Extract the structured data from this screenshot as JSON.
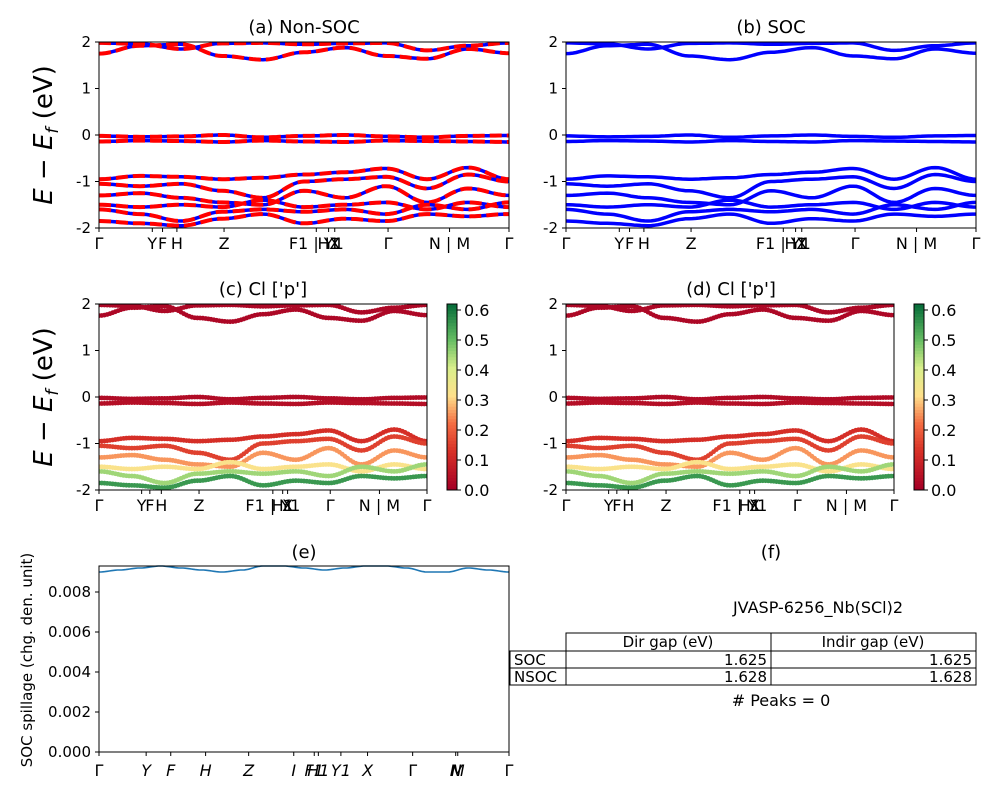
{
  "colors": {
    "nonsoc_a": "#ff0000",
    "nonsoc_b": "#0000ff",
    "soc": "#0000ff",
    "spillage": "#1f77b4"
  },
  "colorbar": {
    "ticks": [
      "0.0",
      "0.1",
      "0.2",
      "0.3",
      "0.4",
      "0.5",
      "0.6"
    ],
    "max": 0.62
  },
  "band_ylabel": "E − E_f (eV)",
  "band_yticks": [
    "-2",
    "-1",
    "0",
    "1",
    "2"
  ],
  "band_xticks": [
    "Γ",
    "Y",
    "F",
    "H",
    "Z",
    "F1 | Y1",
    "H1",
    "X",
    "Γ",
    "N | M",
    "Γ"
  ],
  "band_xpos": [
    0,
    0.13,
    0.155,
    0.19,
    0.305,
    0.53,
    0.56,
    0.575,
    0.705,
    0.855,
    1.0
  ],
  "chart_data": [
    {
      "id": "a",
      "type": "line",
      "title": "(a) Non-SOC",
      "ylabel": "E − E_f (eV)",
      "ylim": [
        -2,
        2
      ],
      "bands": [
        {
          "energies": [
            1.75,
            1.92,
            1.95,
            1.7,
            1.62,
            1.78,
            1.88,
            1.7,
            1.64,
            1.85,
            1.76
          ]
        },
        {
          "energies": [
            1.98,
            1.96,
            1.85,
            1.97,
            1.98,
            1.95,
            1.97,
            1.98,
            1.82,
            1.92,
            1.98
          ]
        },
        {
          "energies": [
            -0.02,
            -0.04,
            -0.03,
            0.0,
            -0.05,
            -0.02,
            0.0,
            -0.03,
            -0.05,
            -0.02,
            -0.01
          ]
        },
        {
          "energies": [
            -0.14,
            -0.12,
            -0.13,
            -0.15,
            -0.12,
            -0.14,
            -0.15,
            -0.12,
            -0.13,
            -0.14,
            -0.15
          ]
        },
        {
          "energies": [
            -0.95,
            -0.88,
            -0.9,
            -0.95,
            -0.92,
            -0.85,
            -0.8,
            -0.72,
            -0.95,
            -0.7,
            -0.95
          ]
        },
        {
          "energies": [
            -1.05,
            -1.1,
            -1.05,
            -1.2,
            -1.35,
            -1.0,
            -0.95,
            -0.9,
            -1.15,
            -0.85,
            -1.0
          ]
        },
        {
          "energies": [
            -1.3,
            -1.25,
            -1.35,
            -1.45,
            -1.5,
            -1.2,
            -1.35,
            -1.1,
            -1.45,
            -1.15,
            -1.3
          ]
        },
        {
          "energies": [
            -1.5,
            -1.55,
            -1.5,
            -1.55,
            -1.4,
            -1.55,
            -1.5,
            -1.45,
            -1.6,
            -1.45,
            -1.55
          ]
        },
        {
          "energies": [
            -1.6,
            -1.7,
            -1.85,
            -1.65,
            -1.6,
            -1.65,
            -1.6,
            -1.7,
            -1.5,
            -1.6,
            -1.45
          ]
        },
        {
          "energies": [
            -1.85,
            -1.9,
            -1.95,
            -1.8,
            -1.7,
            -1.9,
            -1.8,
            -1.85,
            -1.7,
            -1.75,
            -1.7
          ]
        }
      ]
    },
    {
      "id": "b",
      "type": "line",
      "title": "(b) SOC",
      "ylim": [
        -2,
        2
      ],
      "same_bands_as": "a"
    },
    {
      "id": "c",
      "type": "scatter",
      "title": "(c)  Cl ['p']",
      "ylabel": "E − E_f (eV)",
      "ylim": [
        -2,
        2
      ],
      "colorbar_range": [
        0,
        0.62
      ],
      "weights_by_band": [
        0.02,
        0.02,
        0.03,
        0.04,
        0.12,
        0.15,
        0.25,
        0.32,
        0.45,
        0.55
      ]
    },
    {
      "id": "d",
      "type": "scatter",
      "title": "(d) Cl ['p']",
      "ylim": [
        -2,
        2
      ],
      "colorbar_range": [
        0,
        0.62
      ],
      "weights_by_band": [
        0.02,
        0.02,
        0.03,
        0.04,
        0.12,
        0.15,
        0.25,
        0.32,
        0.45,
        0.55
      ]
    },
    {
      "id": "e",
      "type": "line",
      "title": "(e)",
      "ylabel": "SOC spillage (chg. den. unit)",
      "ylim": [
        0,
        0.0093
      ],
      "yticks": [
        "0.000",
        "0.002",
        "0.004",
        "0.006",
        "0.008"
      ],
      "xticks": [
        "Γ",
        "Y",
        "F",
        "H",
        "Z",
        "I",
        "F1",
        "H1",
        "Y1",
        "X",
        "Γ",
        "N",
        "M",
        "Γ"
      ],
      "xpos": [
        0,
        0.115,
        0.175,
        0.26,
        0.365,
        0.475,
        0.525,
        0.535,
        0.59,
        0.655,
        0.765,
        0.87,
        0.875,
        1.0
      ],
      "values": [
        0.009,
        0.0091,
        0.0092,
        0.0093,
        0.0092,
        0.0091,
        0.009,
        0.0091,
        0.0093,
        0.0093,
        0.0092,
        0.0091,
        0.0092,
        0.0093,
        0.0093,
        0.0092,
        0.009,
        0.009,
        0.0092,
        0.0091,
        0.009
      ]
    }
  ],
  "panel_f": {
    "title": "(f)",
    "material": "JVASP-6256_Nb(SCl)2",
    "table": {
      "headers": [
        "Dir gap (eV)",
        "Indir gap (eV)"
      ],
      "rows": [
        {
          "label": "SOC",
          "dir": "1.625",
          "indir": "1.625"
        },
        {
          "label": "NSOC",
          "dir": "1.628",
          "indir": "1.628"
        }
      ]
    },
    "peaks": "# Peaks = 0"
  }
}
